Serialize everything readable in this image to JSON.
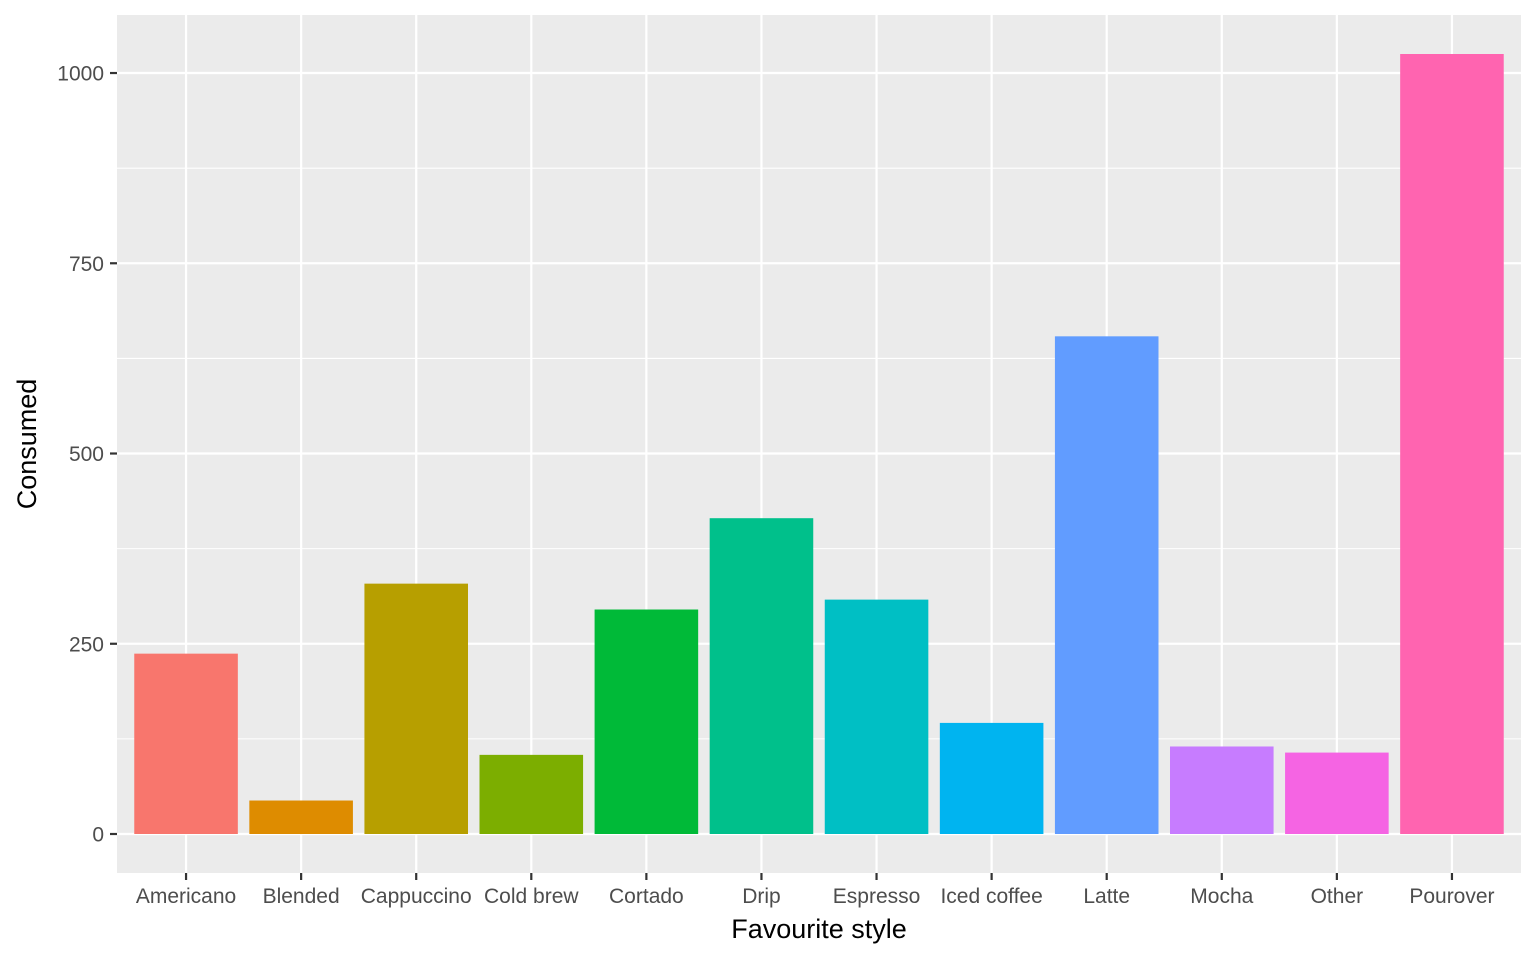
{
  "chart_data": {
    "type": "bar",
    "title": "",
    "xlabel": "Favourite style",
    "ylabel": "Consumed",
    "categories": [
      "Americano",
      "Blended",
      "Cappuccino",
      "Cold brew",
      "Cortado",
      "Drip",
      "Espresso",
      "Iced coffee",
      "Latte",
      "Mocha",
      "Other",
      "Pourover"
    ],
    "values": [
      237,
      44,
      329,
      104,
      295,
      415,
      308,
      146,
      654,
      115,
      107,
      1025
    ],
    "colors": [
      "#F8766D",
      "#DE8C00",
      "#B79F00",
      "#7CAE00",
      "#00BA38",
      "#00C08B",
      "#00BFC4",
      "#00B4F0",
      "#619CFF",
      "#C77CFF",
      "#F564E3",
      "#FF64B0"
    ],
    "ylim": [
      -51.25,
      1076.25
    ],
    "yticks": [
      0,
      250,
      500,
      750,
      1000
    ],
    "grid": true,
    "legend": "none",
    "panel_background": "#EBEBEB",
    "grid_color": "#FFFFFF"
  }
}
